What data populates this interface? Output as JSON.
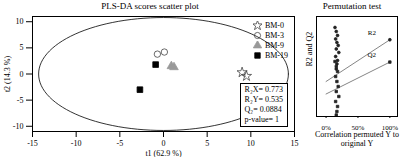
{
  "chart_data": [
    {
      "type": "scatter",
      "title": "PLS-DA scores scatter plot",
      "x_label": "t1 (62.9 %)",
      "y_label": "t2 (14.3 %)",
      "xlim": [
        -15,
        15
      ],
      "xticks": [
        -15,
        -10,
        -5,
        0,
        5,
        10,
        15
      ],
      "ylim": [
        -11,
        11
      ],
      "yticks": [
        -10,
        -5,
        0,
        5,
        10
      ],
      "legend": "top-right",
      "ellipse": {
        "cx": 0,
        "cy": 0,
        "rx": 14.3,
        "ry": 10.8
      },
      "annotations": [
        "R₂X= 0.773",
        "R₂Y= 0.535",
        "Q₂= 0.0884",
        "p-value= 1"
      ],
      "series": [
        {
          "name": "BM-0",
          "color": "#444444",
          "marker": "star-open",
          "x": [
            9.0,
            9.5
          ],
          "y": [
            0.3,
            -0.4
          ]
        },
        {
          "name": "BM-3",
          "color": "#444444",
          "marker": "circle-open",
          "x": [
            -0.7,
            0.1
          ],
          "y": [
            3.8,
            4.2
          ]
        },
        {
          "name": "BM-9",
          "color": "#999999",
          "marker": "triangle",
          "x": [
            0.9,
            1.2
          ],
          "y": [
            1.5,
            1.3
          ]
        },
        {
          "name": "BM-19",
          "color": "#000000",
          "marker": "square",
          "x": [
            -0.9,
            -2.7
          ],
          "y": [
            1.8,
            -3.0
          ]
        }
      ]
    },
    {
      "type": "scatter",
      "title": "Permutation test",
      "x_label": "Correlation permuted Y to original Y",
      "y_label": "R2 and Q2",
      "xlim": [
        -15,
        112
      ],
      "xticks": [
        {
          "value": 0,
          "label": "0%"
        },
        {
          "value": 50,
          "label": "50%"
        },
        {
          "value": 100,
          "label": "100%"
        }
      ],
      "ylim": [
        -1,
        1
      ],
      "tick_labels": "x",
      "series": [
        {
          "name": "R2",
          "color": "#222222",
          "marker": "circle",
          "x": [
            14,
            16,
            18,
            15,
            17,
            19,
            16,
            20,
            15,
            18,
            17,
            16,
            100
          ],
          "y": [
            0.78,
            0.7,
            0.62,
            0.55,
            0.48,
            0.42,
            0.35,
            0.28,
            0.2,
            0.12,
            0.05,
            -0.05,
            0.535
          ],
          "line_x": [
            0,
            100
          ],
          "line_y": [
            -0.3,
            0.535
          ]
        },
        {
          "name": "Q2",
          "color": "#222222",
          "marker": "square",
          "x": [
            14,
            16,
            18,
            15,
            17,
            19,
            16,
            20,
            15,
            18,
            17,
            16,
            100
          ],
          "y": [
            0.1,
            0.0,
            -0.1,
            -0.2,
            -0.3,
            -0.4,
            -0.5,
            -0.6,
            -0.7,
            -0.8,
            -0.9,
            -0.97,
            0.0884
          ],
          "line_x": [
            0,
            100
          ],
          "line_y": [
            -0.55,
            0.0884
          ]
        }
      ]
    }
  ]
}
